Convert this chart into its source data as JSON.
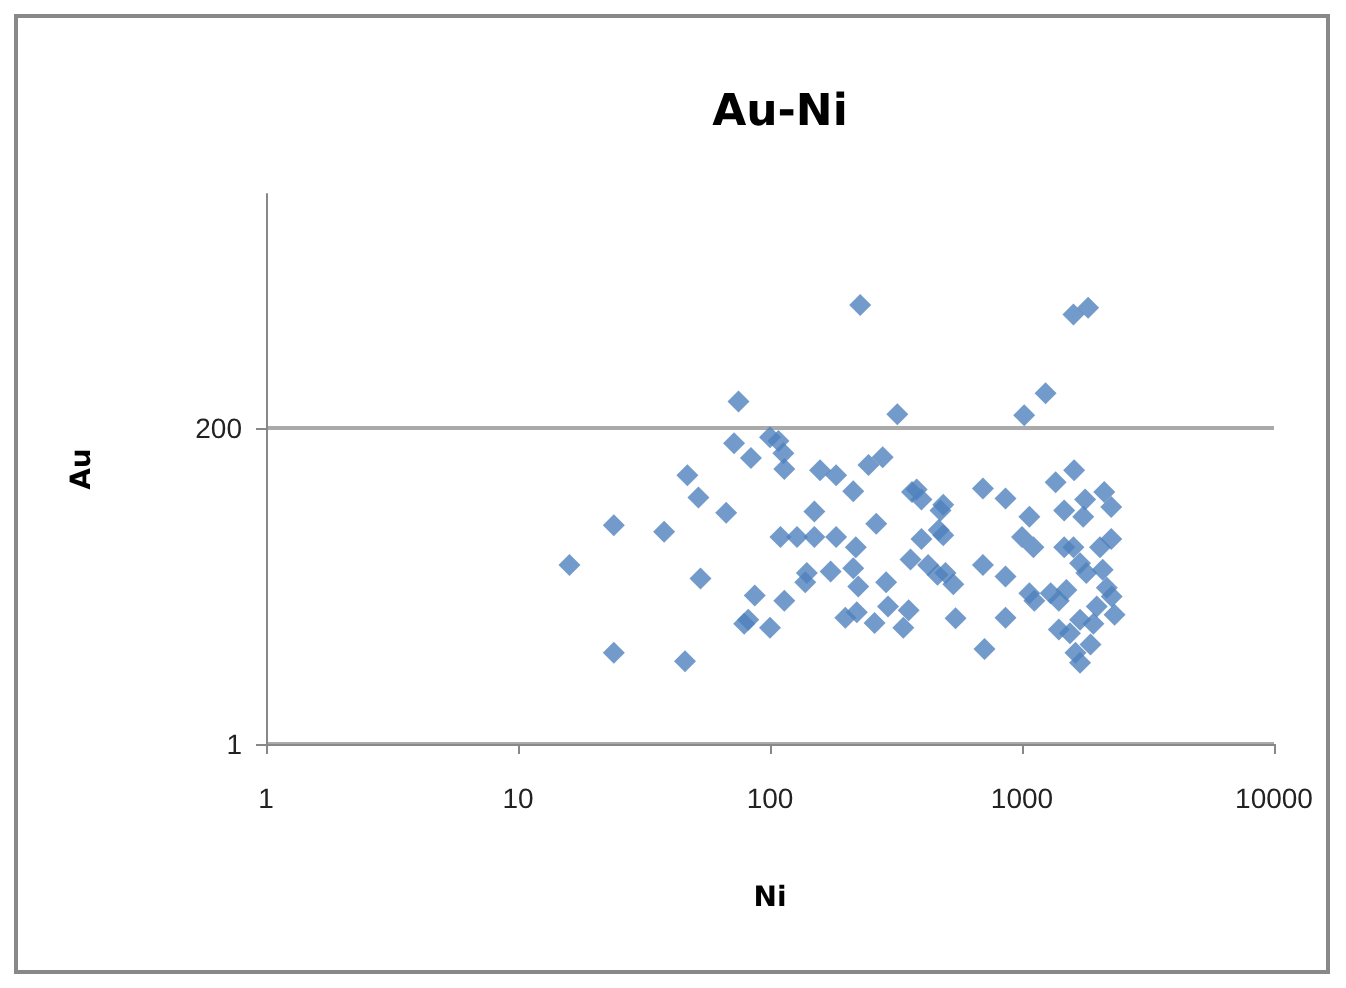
{
  "chart_data": {
    "type": "scatter",
    "title": "Au-Ni",
    "xlabel": "Ni",
    "ylabel": "Au",
    "log": "xy",
    "xlim": [
      1,
      10000
    ],
    "xticks": [
      1,
      10,
      100,
      1000,
      10000
    ],
    "ylim": [
      1,
      10000
    ],
    "yticks": [
      1,
      200
    ],
    "grid": "y",
    "marker": "diamond",
    "series": [
      {
        "color": "#4f81bd",
        "x": [
          16,
          24,
          24,
          38,
          46,
          47,
          52,
          53,
          67,
          72,
          75,
          84,
          79,
          82,
          87,
          100,
          100,
          108,
          113,
          114,
          114,
          110,
          128,
          150,
          183,
          150,
          158,
          183,
          214,
          219,
          214,
          224,
          140,
          138,
          174,
          199,
          221,
          260,
          264,
          246,
          280,
          289,
          294,
          338,
          355,
          320,
          228,
          366,
          382,
          399,
          361,
          399,
          424,
          462,
          475,
          487,
          467,
          487,
          497,
          534,
          545,
          700,
          700,
          860,
          860,
          860,
          710,
          1020,
          1240,
          1600,
          1830,
          1070,
          1000,
          1110,
          1070,
          1120,
          1300,
          1360,
          1610,
          1470,
          1470,
          1600,
          1780,
          1750,
          1700,
          1800,
          2120,
          2260,
          2040,
          2260,
          2090,
          2270,
          1980,
          2330,
          1920,
          1400,
          1550,
          1700,
          1870,
          1630,
          1700,
          2170,
          1500,
          1400
        ],
        "values": [
          20,
          39,
          4.6,
          35,
          4,
          90,
          62,
          16,
          48,
          154,
          310,
          120,
          7.5,
          8,
          12,
          7,
          170,
          160,
          130,
          100,
          11,
          32,
          32,
          32,
          32,
          49,
          98,
          90,
          69,
          27,
          19,
          14,
          17.5,
          15,
          18,
          8.3,
          9.1,
          7.6,
          40,
          107,
          122,
          15,
          10,
          7,
          9.4,
          250,
          1560,
          68,
          71,
          60,
          22,
          31,
          20,
          17,
          50,
          55,
          36,
          33,
          17.5,
          14.5,
          8.2,
          72,
          20,
          61,
          16.5,
          8.3,
          4.9,
          246,
          356,
          1330,
          1490,
          45,
          32,
          27,
          12.5,
          11,
          12.5,
          80,
          98,
          50,
          27,
          27,
          60,
          45,
          20.6,
          17.5,
          68,
          53,
          27,
          31,
          18.5,
          11.8,
          10,
          8.7,
          7.5,
          6.8,
          6.4,
          8,
          5.3,
          4.6,
          3.9,
          13.7,
          13.2,
          11
        ]
      }
    ]
  }
}
